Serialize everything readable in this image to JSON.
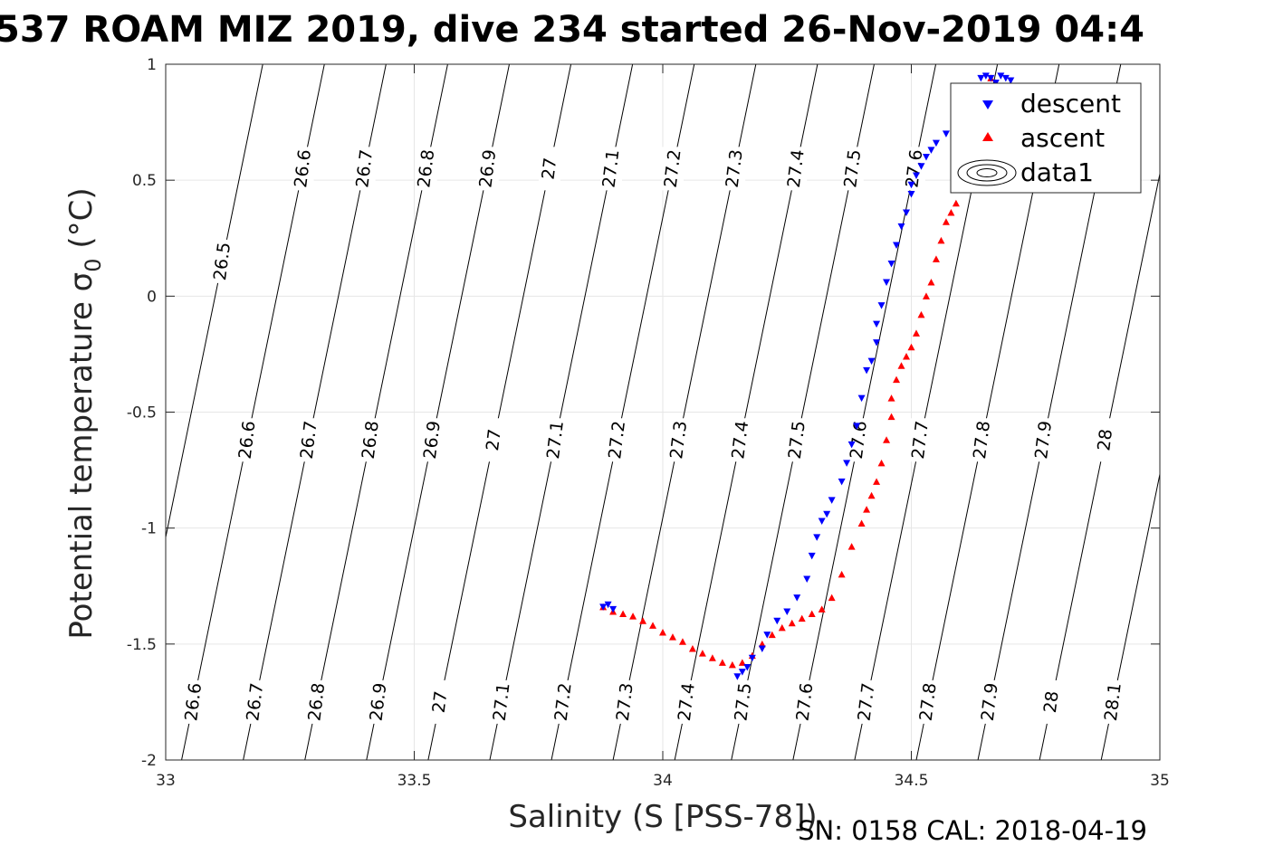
{
  "chart_data": {
    "type": "scatter",
    "title": "537 ROAM MIZ 2019, dive 234 started 26-Nov-2019 04:4",
    "xlabel": "Salinity (S [PSS-78])",
    "ylabel": "Potential temperature",
    "ylabel_symbol": "σ",
    "ylabel_subscript": "0",
    "ylabel_unit": "(°C)",
    "xlim": [
      33,
      35
    ],
    "ylim": [
      -2,
      1
    ],
    "x_ticks": [
      33,
      33.5,
      34,
      34.5,
      35
    ],
    "x_tick_labels": [
      "33",
      "33.5",
      "34",
      "34.5",
      "35"
    ],
    "y_ticks": [
      -2,
      -1.5,
      -1,
      -0.5,
      0,
      0.5,
      1
    ],
    "y_tick_labels": [
      "-2",
      "-1.5",
      "-1",
      "-0.5",
      "0",
      "0.5",
      "1"
    ],
    "grid": true,
    "legend_position": "top-right",
    "legend": [
      "descent",
      "ascent",
      "data1"
    ],
    "contours": {
      "levels": [
        "26.5",
        "26.6",
        "26.7",
        "26.8",
        "26.9",
        "27",
        "27.1",
        "27.2",
        "27.3",
        "27.4",
        "27.5",
        "27.6",
        "27.7",
        "27.8",
        "27.9",
        "28",
        "28.1"
      ],
      "values": [
        26.5,
        26.6,
        26.7,
        26.8,
        26.9,
        27.0,
        27.1,
        27.2,
        27.3,
        27.4,
        27.5,
        27.6,
        27.7,
        27.8,
        27.9,
        28.0,
        28.1
      ],
      "label_rows": [
        {
          "y": 0.15,
          "levels": [
            "26.5"
          ]
        },
        {
          "y": 0.55,
          "levels": [
            "26.6",
            "26.7",
            "26.8",
            "26.9",
            "27",
            "27.1",
            "27.2",
            "27.3",
            "27.4",
            "27.5",
            "27.6",
            "27.7"
          ]
        },
        {
          "y": -0.62,
          "levels": [
            "26.6",
            "26.7",
            "26.8",
            "26.9",
            "27",
            "27.1",
            "27.2",
            "27.3",
            "27.4",
            "27.5",
            "27.6",
            "27.7",
            "27.8",
            "27.9",
            "28",
            "28.1"
          ]
        },
        {
          "y": -1.75,
          "levels": [
            "26.6",
            "26.7",
            "26.8",
            "26.9",
            "27",
            "27.1",
            "27.2",
            "27.3",
            "27.4",
            "27.5",
            "27.6",
            "27.7",
            "27.8",
            "27.9",
            "28",
            "28.1"
          ]
        }
      ]
    },
    "series": [
      {
        "name": "descent",
        "marker": "triangle-down",
        "color": "#0000ff",
        "x": [
          34.15,
          34.16,
          34.17,
          34.18,
          34.2,
          34.21,
          34.23,
          34.25,
          34.27,
          34.29,
          34.3,
          34.31,
          34.32,
          34.33,
          34.34,
          34.36,
          34.37,
          34.38,
          34.39,
          34.4,
          34.41,
          34.42,
          34.43,
          34.43,
          34.44,
          34.45,
          34.46,
          34.47,
          34.48,
          34.49,
          34.5,
          34.5,
          34.51,
          34.52,
          34.53,
          34.54,
          34.55,
          34.57,
          34.59,
          34.6,
          34.62,
          34.63,
          34.64,
          34.65,
          34.66,
          34.67,
          34.68,
          34.69,
          34.7,
          33.88,
          33.89,
          33.9
        ],
        "y": [
          -1.64,
          -1.62,
          -1.6,
          -1.56,
          -1.52,
          -1.46,
          -1.4,
          -1.36,
          -1.3,
          -1.22,
          -1.12,
          -1.04,
          -0.97,
          -0.94,
          -0.88,
          -0.8,
          -0.72,
          -0.64,
          -0.56,
          -0.44,
          -0.32,
          -0.28,
          -0.2,
          -0.12,
          -0.04,
          0.06,
          0.14,
          0.22,
          0.3,
          0.36,
          0.44,
          0.48,
          0.52,
          0.56,
          0.6,
          0.63,
          0.66,
          0.7,
          0.75,
          0.8,
          0.86,
          0.9,
          0.94,
          0.95,
          0.94,
          0.92,
          0.95,
          0.94,
          0.93,
          -1.34,
          -1.33,
          -1.35
        ]
      },
      {
        "name": "ascent",
        "marker": "triangle-up",
        "color": "#ff0000",
        "x": [
          33.88,
          33.9,
          33.92,
          33.94,
          33.96,
          33.98,
          34.0,
          34.02,
          34.04,
          34.06,
          34.08,
          34.1,
          34.12,
          34.14,
          34.16,
          34.18,
          34.2,
          34.22,
          34.24,
          34.26,
          34.28,
          34.3,
          34.32,
          34.34,
          34.36,
          34.38,
          34.4,
          34.41,
          34.42,
          34.43,
          34.44,
          34.45,
          34.46,
          34.46,
          34.47,
          34.48,
          34.49,
          34.5,
          34.51,
          34.52,
          34.53,
          34.54,
          34.55,
          34.56,
          34.57,
          34.58,
          34.59,
          34.6,
          34.61,
          34.62,
          34.63,
          34.64,
          34.65,
          34.66,
          34.67,
          34.68,
          34.69,
          34.7
        ],
        "y": [
          -1.34,
          -1.36,
          -1.37,
          -1.38,
          -1.4,
          -1.42,
          -1.45,
          -1.47,
          -1.49,
          -1.52,
          -1.54,
          -1.56,
          -1.58,
          -1.59,
          -1.58,
          -1.55,
          -1.5,
          -1.46,
          -1.43,
          -1.41,
          -1.39,
          -1.37,
          -1.35,
          -1.3,
          -1.2,
          -1.08,
          -0.98,
          -0.92,
          -0.86,
          -0.8,
          -0.72,
          -0.62,
          -0.52,
          -0.44,
          -0.36,
          -0.3,
          -0.26,
          -0.22,
          -0.16,
          -0.08,
          0.0,
          0.06,
          0.16,
          0.24,
          0.32,
          0.36,
          0.4,
          0.5,
          0.6,
          0.7,
          0.8,
          0.86,
          0.9,
          0.94,
          0.92,
          0.9,
          0.82,
          0.5
        ]
      }
    ]
  },
  "footer": "SN: 0158  CAL: 2018-04-19",
  "colors": {
    "descent": "#0000ff",
    "ascent": "#ff0000",
    "grid": "#e6e6e6",
    "axis": "#262626"
  }
}
